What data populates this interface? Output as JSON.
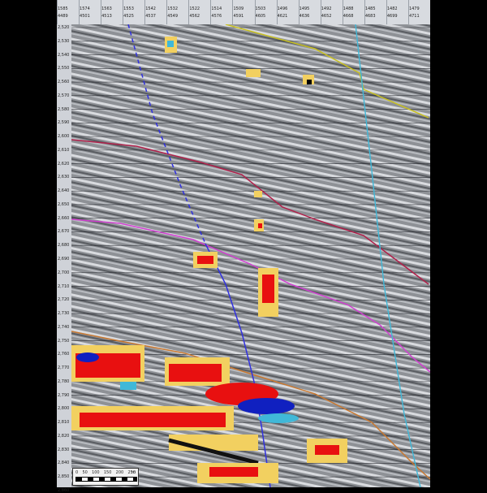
{
  "header": {
    "trace_top": [
      "1585",
      "1574",
      "1563",
      "1553",
      "1542",
      "1532",
      "1522",
      "1514",
      "1509",
      "1503",
      "1496",
      "1495",
      "1492",
      "1488",
      "1485",
      "1482",
      "1479"
    ],
    "trace_bottom": [
      "4489",
      "4501",
      "4513",
      "4525",
      "4537",
      "4549",
      "4562",
      "4576",
      "4591",
      "4605",
      "4621",
      "4636",
      "4652",
      "4668",
      "4683",
      "4699",
      "4711"
    ]
  },
  "depth_axis": {
    "labels": [
      "2,520",
      "2,530",
      "2,540",
      "2,550",
      "2,560",
      "2,570",
      "2,580",
      "2,590",
      "2,600",
      "2,610",
      "2,620",
      "2,630",
      "2,640",
      "2,650",
      "2,660",
      "2,670",
      "2,680",
      "2,690",
      "2,700",
      "2,710",
      "2,720",
      "2,730",
      "2,740",
      "2,750",
      "2,760",
      "2,770",
      "2,780",
      "2,790",
      "2,800",
      "2,810",
      "2,820",
      "2,830",
      "2,840",
      "2,850",
      "2,860"
    ]
  },
  "scale_bar": {
    "labels": [
      "0",
      "50",
      "100",
      "150",
      "200",
      "250"
    ],
    "unit": "m"
  },
  "colors": {
    "horizon_yellow": "#c8c020",
    "horizon_red": "#b0204a",
    "horizon_magenta": "#d040d0",
    "horizon_orange": "#c87830",
    "well_cyan": "#40b8d8",
    "well_blue": "#3030e0",
    "anomaly_red": "#e81010",
    "anomaly_yellow": "#f2d060",
    "anomaly_blue": "#1020c0"
  }
}
